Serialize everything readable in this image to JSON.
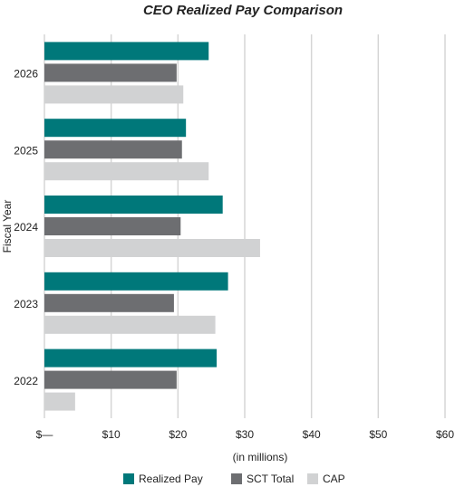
{
  "chart_data": {
    "type": "hbar",
    "title": "CEO Realized Pay Comparison",
    "x_label": "(in millions)",
    "y_label": "Fiscal Year",
    "categories": [
      "2026",
      "2025",
      "2024",
      "2023",
      "2022"
    ],
    "series": [
      {
        "name": "Realized Pay",
        "color": "#00787a",
        "values": [
          24.6,
          21.2,
          26.7,
          27.5,
          25.8
        ]
      },
      {
        "name": "SCT Total",
        "color": "#6d6e71",
        "values": [
          19.8,
          20.6,
          20.4,
          19.4,
          19.8
        ]
      },
      {
        "name": "CAP",
        "color": "#d1d2d3",
        "values": [
          20.8,
          24.6,
          32.3,
          25.6,
          4.6
        ]
      }
    ],
    "xlim": [
      0,
      60
    ],
    "xticks": [
      {
        "value": 0,
        "label": "$—"
      },
      {
        "value": 10,
        "label": "$10"
      },
      {
        "value": 20,
        "label": "$20"
      },
      {
        "value": 30,
        "label": "$30"
      },
      {
        "value": 40,
        "label": "$40"
      },
      {
        "value": 50,
        "label": "$50"
      },
      {
        "value": 60,
        "label": "$60"
      }
    ],
    "grid": true,
    "legend": "bottom"
  }
}
